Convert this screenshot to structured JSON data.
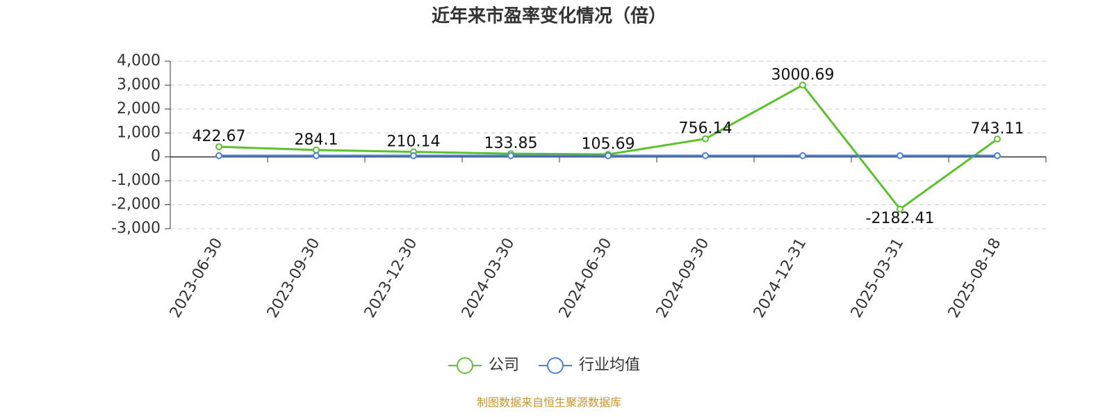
{
  "chart_data": {
    "type": "line",
    "title": "近年来市盈率变化情况（倍）",
    "categories": [
      "2023-06-30",
      "2023-09-30",
      "2023-12-30",
      "2024-03-30",
      "2024-06-30",
      "2024-09-30",
      "2024-12-31",
      "2025-03-31",
      "2025-08-18"
    ],
    "series": [
      {
        "name": "公司",
        "color": "#5cc12a",
        "values": [
          422.67,
          284.1,
          210.14,
          133.85,
          105.69,
          756.14,
          3000.69,
          -2182.41,
          743.11
        ]
      },
      {
        "name": "行业均值",
        "color": "#4b7fd9",
        "values": [
          50,
          50,
          50,
          50,
          50,
          50,
          50,
          50,
          50
        ]
      }
    ],
    "ylim": [
      -3000,
      4000
    ],
    "yticks": [
      {
        "value": 4000,
        "label": "4,000"
      },
      {
        "value": 3000,
        "label": "3,000"
      },
      {
        "value": 2000,
        "label": "2,000"
      },
      {
        "value": 1000,
        "label": "1,000"
      },
      0,
      {
        "value": -1000,
        "label": "-1,000"
      },
      {
        "value": -2000,
        "label": "-2,000"
      },
      {
        "value": -3000,
        "label": "-3,000"
      }
    ],
    "grid": true,
    "legend": "bottom",
    "source": "制图数据来自恒生聚源数据库"
  }
}
